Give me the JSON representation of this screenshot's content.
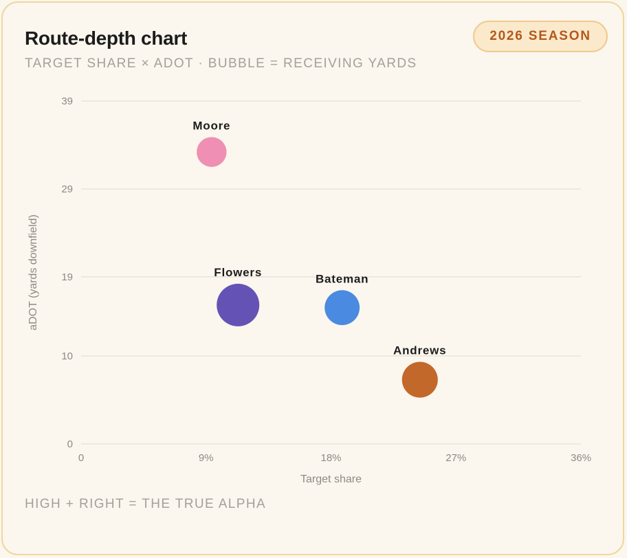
{
  "card": {
    "title": "Route-depth chart",
    "subtitle": "TARGET SHARE × ADOT · BUBBLE = RECEIVING YARDS",
    "badge": "2026 SEASON",
    "footer": "HIGH + RIGHT = THE TRUE ALPHA"
  },
  "colors": {
    "background": "#fbf6ee",
    "border": "#f1d79a",
    "badge_text": "#b4581a",
    "badge_fill": "#fbe9cc"
  },
  "chart_data": {
    "type": "scatter",
    "subtype": "bubble",
    "xlabel": "Target share",
    "ylabel": "aDOT (yards downfield)",
    "xlim": [
      0,
      0.36
    ],
    "ylim": [
      0,
      39
    ],
    "x_ticks": [
      0,
      0.09,
      0.18,
      0.27,
      0.36
    ],
    "x_tick_labels": [
      "0",
      "9%",
      "18%",
      "27%",
      "36%"
    ],
    "y_ticks": [
      0,
      10,
      19,
      29,
      39
    ],
    "y_tick_labels": [
      "0",
      "10",
      "19",
      "29",
      "39"
    ],
    "grid": "horizontal",
    "bubble_size": "receiving yards",
    "points": [
      {
        "label": "Moore",
        "x": 0.094,
        "y": 33.2,
        "size_rel": 0.7,
        "color": "#ee8fb3"
      },
      {
        "label": "Flowers",
        "x": 0.113,
        "y": 15.8,
        "size_rel": 1.0,
        "color": "#6552b5"
      },
      {
        "label": "Bateman",
        "x": 0.188,
        "y": 15.5,
        "size_rel": 0.82,
        "color": "#4a8ae0"
      },
      {
        "label": "Andrews",
        "x": 0.244,
        "y": 7.3,
        "size_rel": 0.84,
        "color": "#c2682a"
      }
    ]
  }
}
